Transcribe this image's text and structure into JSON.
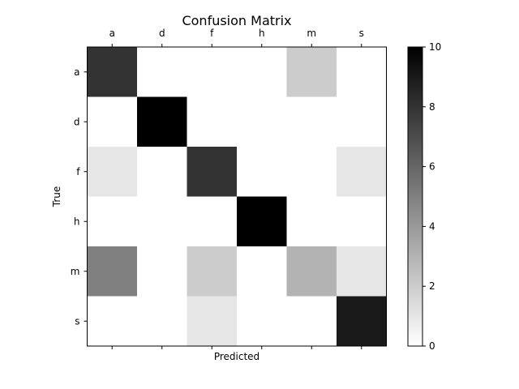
{
  "chart_data": {
    "type": "heatmap",
    "title": "Confusion Matrix",
    "xlabel": "Predicted",
    "ylabel": "True",
    "x_categories": [
      "a",
      "d",
      "f",
      "h",
      "m",
      "s"
    ],
    "y_categories": [
      "a",
      "d",
      "f",
      "h",
      "m",
      "s"
    ],
    "values": [
      [
        8,
        0,
        0,
        0,
        2,
        0
      ],
      [
        0,
        10,
        0,
        0,
        0,
        0
      ],
      [
        1,
        0,
        8,
        0,
        0,
        1
      ],
      [
        0,
        0,
        0,
        10,
        0,
        0
      ],
      [
        5,
        0,
        2,
        0,
        3,
        1
      ],
      [
        0,
        0,
        1,
        0,
        0,
        9
      ]
    ],
    "colorbar": {
      "min": 0,
      "max": 10,
      "ticks": [
        0,
        2,
        4,
        6,
        8,
        10
      ],
      "colormap": "gray_r"
    },
    "x_tick_labels_position": "top",
    "grid": false
  }
}
